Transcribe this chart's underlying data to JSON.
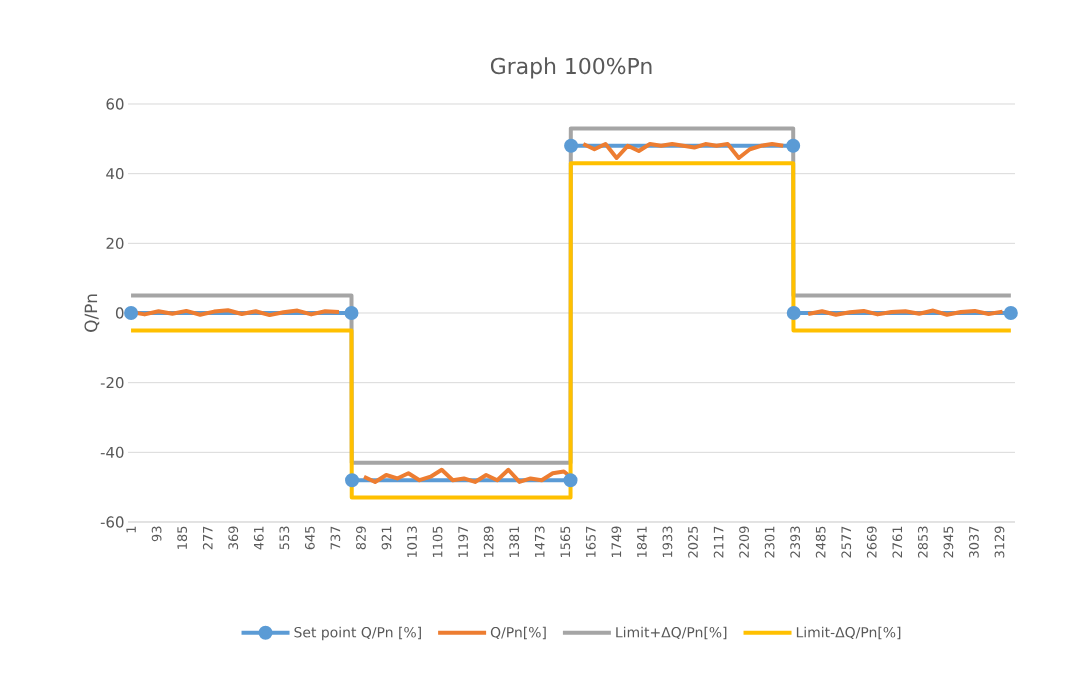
{
  "chart_data": {
    "type": "line",
    "title": "Graph 100%Pn",
    "ylabel": "Q/Pn",
    "xlim": [
      -10,
      3185
    ],
    "ylim": [
      -60,
      60
    ],
    "xticks": [
      1,
      93,
      185,
      277,
      369,
      461,
      553,
      645,
      737,
      829,
      921,
      1013,
      1105,
      1197,
      1289,
      1381,
      1473,
      1565,
      1657,
      1749,
      1841,
      1933,
      2025,
      2117,
      2209,
      2301,
      2393,
      2485,
      2577,
      2669,
      2761,
      2853,
      2945,
      3037,
      3129
    ],
    "yticks": [
      -60,
      -40,
      -20,
      0,
      20,
      40,
      60
    ],
    "grid": "y",
    "legend": "bottom",
    "line_style": "solid",
    "marker": "none",
    "series": [
      {
        "name": "Set point Q/Pn [%]",
        "color": "#5b9bd5",
        "marker": "circle",
        "x": [
          1,
          795,
          796,
          797,
          1584,
          1585,
          1586,
          2386,
          2387,
          2388,
          3170
        ],
        "values": [
          0,
          0,
          null,
          -48,
          -48,
          null,
          48,
          48,
          null,
          0,
          0
        ]
      },
      {
        "name": "Q/Pn[%]",
        "color": "#ed7d31",
        "x": [
          1,
          50,
          100,
          150,
          200,
          250,
          300,
          350,
          400,
          450,
          500,
          550,
          600,
          650,
          700,
          750,
          795,
          797,
          840,
          880,
          920,
          960,
          1000,
          1040,
          1080,
          1120,
          1160,
          1200,
          1240,
          1280,
          1320,
          1360,
          1400,
          1440,
          1480,
          1520,
          1560,
          1584,
          1586,
          1630,
          1670,
          1710,
          1750,
          1790,
          1830,
          1870,
          1910,
          1950,
          1990,
          2030,
          2070,
          2110,
          2150,
          2190,
          2230,
          2270,
          2310,
          2350,
          2386,
          2388,
          2440,
          2490,
          2540,
          2590,
          2640,
          2690,
          2740,
          2790,
          2840,
          2890,
          2940,
          2990,
          3040,
          3090,
          3140
        ],
        "values": [
          0.3,
          -0.4,
          0.5,
          -0.2,
          0.6,
          -0.5,
          0.4,
          0.8,
          -0.3,
          0.5,
          -0.6,
          0.2,
          0.7,
          -0.4,
          0.5,
          0.3,
          null,
          null,
          -47,
          -48.5,
          -46.5,
          -47.5,
          -46,
          -48,
          -47,
          -45,
          -48,
          -47.5,
          -48.5,
          -46.5,
          -48,
          -45,
          -48.5,
          -47.5,
          -48,
          -46,
          -45.5,
          -47,
          null,
          48.5,
          47,
          48.5,
          44.5,
          48,
          46.5,
          48.5,
          48,
          48.5,
          48,
          47.5,
          48.5,
          48,
          48.5,
          44.5,
          47,
          48,
          48.5,
          48,
          null,
          null,
          -0.3,
          0.5,
          -0.5,
          0.2,
          0.6,
          -0.4,
          0.3,
          0.5,
          -0.2,
          0.7,
          -0.5,
          0.3,
          0.6,
          -0.3,
          0.4
        ]
      },
      {
        "name": "Limit+ΔQ/Pn[%]",
        "color": "#a5a5a5",
        "x": [
          1,
          795,
          796,
          1584,
          1585,
          2386,
          2387,
          3170
        ],
        "values": [
          5,
          5,
          -43,
          -43,
          53,
          53,
          5,
          5
        ]
      },
      {
        "name": "Limit-ΔQ/Pn[%]",
        "color": "#ffc000",
        "x": [
          1,
          795,
          796,
          1584,
          1585,
          2386,
          2387,
          3170
        ],
        "values": [
          -5,
          -5,
          -53,
          -53,
          43,
          43,
          -5,
          -5
        ]
      }
    ]
  }
}
